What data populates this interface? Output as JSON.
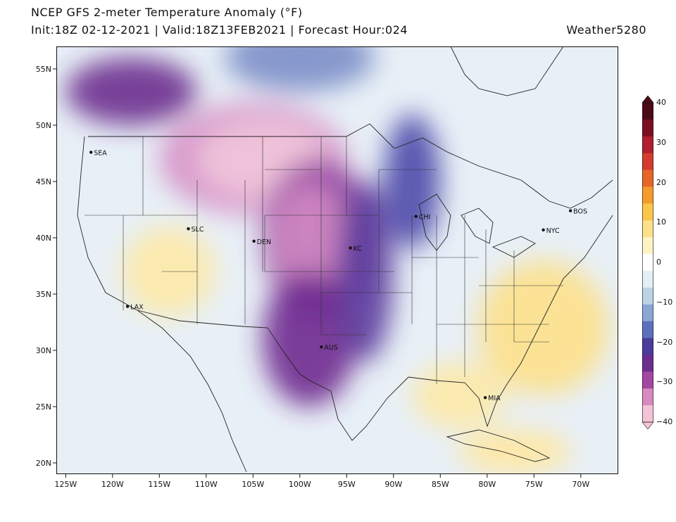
{
  "header": {
    "title": "NCEP GFS 2-meter Temperature Anomaly (°F)",
    "subtitle": "Init:18Z 02-12-2021 | Valid:18Z13FEB2021 | Forecast Hour:024",
    "brand": "Weather5280"
  },
  "map": {
    "lon_range": [
      -126,
      -66
    ],
    "lat_range": [
      19,
      57
    ],
    "lon_ticks": [
      "125W",
      "120W",
      "115W",
      "110W",
      "105W",
      "100W",
      "95W",
      "90W",
      "85W",
      "80W",
      "75W",
      "70W"
    ],
    "lat_ticks": [
      "55N",
      "50N",
      "45N",
      "40N",
      "35N",
      "30N",
      "25N",
      "20N"
    ],
    "cities": [
      {
        "name": "SEA",
        "lon": -122.3,
        "lat": 47.6
      },
      {
        "name": "SLC",
        "lon": -111.9,
        "lat": 40.8
      },
      {
        "name": "DEN",
        "lon": -104.9,
        "lat": 39.7
      },
      {
        "name": "KC",
        "lon": -94.6,
        "lat": 39.1
      },
      {
        "name": "CHI",
        "lon": -87.6,
        "lat": 41.9
      },
      {
        "name": "BOS",
        "lon": -71.1,
        "lat": 42.4
      },
      {
        "name": "NYC",
        "lon": -74.0,
        "lat": 40.7
      },
      {
        "name": "LAX",
        "lon": -118.4,
        "lat": 33.9
      },
      {
        "name": "AUS",
        "lon": -97.7,
        "lat": 30.3
      },
      {
        "name": "MIA",
        "lon": -80.2,
        "lat": 25.8
      }
    ]
  },
  "colorbar": {
    "labels": [
      "40",
      "30",
      "20",
      "10",
      "0",
      "−10",
      "−20",
      "−30",
      "−40"
    ],
    "colors": [
      "#f2c4d6",
      "#d889bf",
      "#a347a3",
      "#6b2d8e",
      "#4b3b9a",
      "#5e6fbd",
      "#89a6d4",
      "#bcd3e6",
      "#e4eef5",
      "#ffffff",
      "#fff3c4",
      "#fde08a",
      "#fbc64a",
      "#f59a2c",
      "#e8652a",
      "#d43b2e",
      "#b01e2f",
      "#7a0f22",
      "#4b0a17"
    ]
  },
  "anomalies": [
    {
      "c": "#d690c8",
      "lon": -105,
      "lat": 47,
      "rx": 10,
      "ry": 5
    },
    {
      "c": "#f2c6da",
      "lon": -104,
      "lat": 47,
      "rx": 7,
      "ry": 3.5
    },
    {
      "c": "#8c3aa0",
      "lon": -98,
      "lat": 40,
      "rx": 6,
      "ry": 7
    },
    {
      "c": "#d28bc2",
      "lon": -99,
      "lat": 40,
      "rx": 4,
      "ry": 5
    },
    {
      "c": "#6e2a8f",
      "lon": -99,
      "lat": 31,
      "rx": 5,
      "ry": 6
    },
    {
      "c": "#5b3c9c",
      "lon": -93,
      "lat": 37,
      "rx": 3,
      "ry": 8
    },
    {
      "c": "#4a48a8",
      "lon": -88,
      "lat": 45,
      "rx": 3,
      "ry": 6
    },
    {
      "c": "#7c8ec8",
      "lon": -100,
      "lat": 56,
      "rx": 8,
      "ry": 3
    },
    {
      "c": "#6b2d8e",
      "lon": -118,
      "lat": 53,
      "rx": 7,
      "ry": 3
    },
    {
      "c": "#fde9a6",
      "lon": -114,
      "lat": 37,
      "rx": 5,
      "ry": 4
    },
    {
      "c": "#fde08a",
      "lon": -74,
      "lat": 32,
      "rx": 7,
      "ry": 6
    },
    {
      "c": "#fde9a6",
      "lon": -83,
      "lat": 26,
      "rx": 5,
      "ry": 3
    },
    {
      "c": "#ffe7a0",
      "lon": -77,
      "lat": 21,
      "rx": 6,
      "ry": 2
    }
  ]
}
